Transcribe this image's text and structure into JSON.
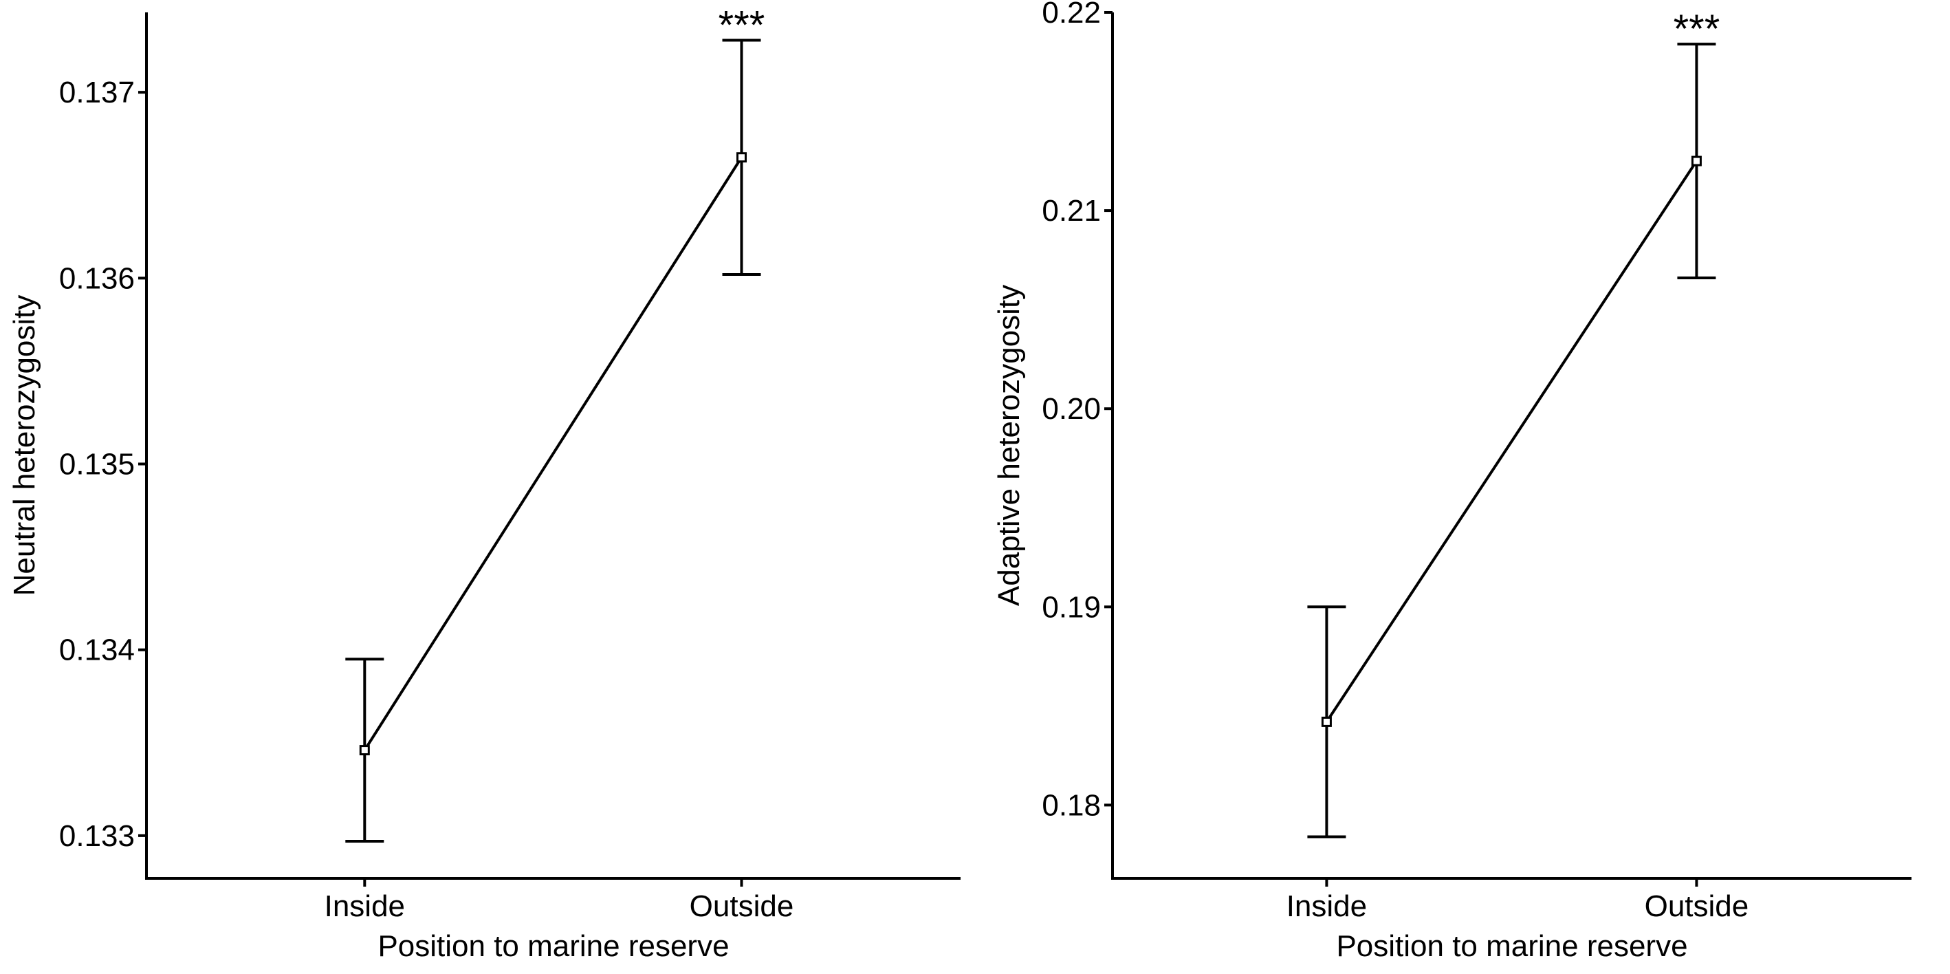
{
  "chart_data": [
    {
      "type": "line",
      "xlabel": "Position to marine reserve",
      "ylabel": "Neutral heterozygosity",
      "categories": [
        "Inside",
        "Outside"
      ],
      "series": [
        {
          "values": [
            0.13346,
            0.13665
          ],
          "error_low": [
            0.13297,
            0.13602
          ],
          "error_high": [
            0.13395,
            0.13728
          ]
        }
      ],
      "annotations": [
        {
          "category": "Outside",
          "text": "***"
        }
      ],
      "ylim": [
        0.13277,
        0.13743
      ],
      "yticks": [
        0.133,
        0.134,
        0.135,
        0.136,
        0.137
      ],
      "ytick_labels": [
        "0.133",
        "0.134",
        "0.135",
        "0.136",
        "0.137"
      ],
      "grid": false
    },
    {
      "type": "line",
      "xlabel": "Position to marine reserve",
      "ylabel": "Adaptive heterozygosity",
      "categories": [
        "Inside",
        "Outside"
      ],
      "series": [
        {
          "values": [
            0.1842,
            0.2125
          ],
          "error_low": [
            0.1784,
            0.2066
          ],
          "error_high": [
            0.19,
            0.2184
          ]
        }
      ],
      "annotations": [
        {
          "category": "Outside",
          "text": "***"
        }
      ],
      "ylim": [
        0.1763,
        0.22
      ],
      "yticks": [
        0.18,
        0.19,
        0.2,
        0.21,
        0.22
      ],
      "ytick_labels": [
        "0.18",
        "0.19",
        "0.20",
        "0.21",
        "0.22"
      ],
      "grid": false
    }
  ]
}
